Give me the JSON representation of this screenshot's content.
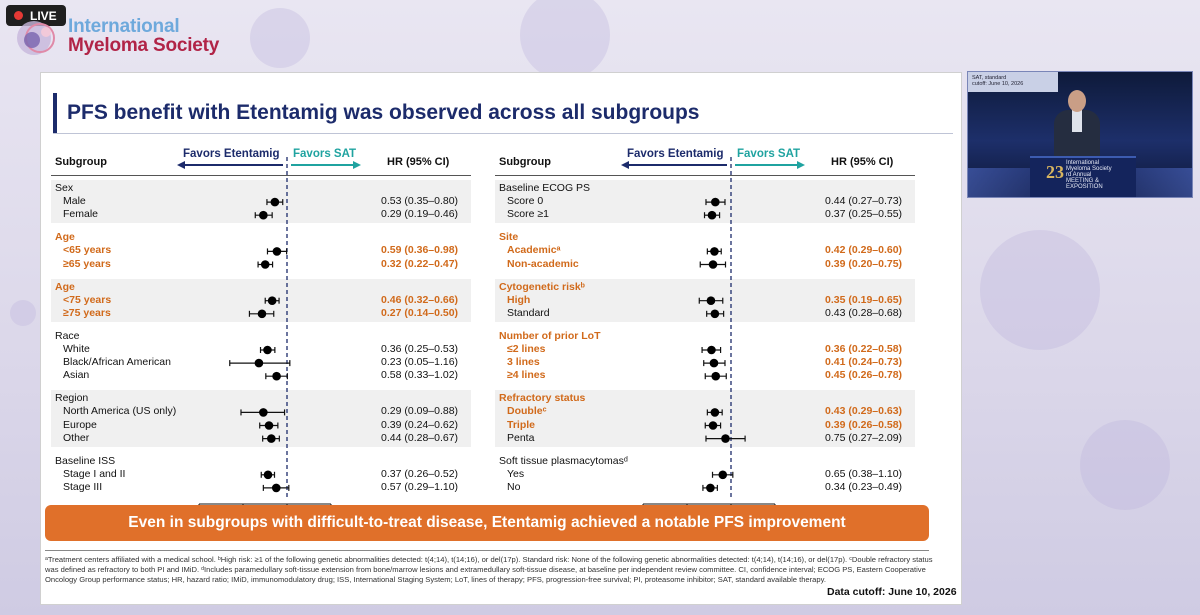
{
  "live_badge": "LIVE",
  "logo": {
    "line1": "International",
    "line2": "Myeloma Society"
  },
  "slide": {
    "title": "PFS benefit with Etentamig was observed across all subgroups",
    "headers": {
      "subgroup": "Subgroup",
      "favors_left": "Favors Etentamig",
      "favors_right": "Favors SAT",
      "hr": "HR (95% CI)"
    },
    "axis_ticks": [
      "0.01",
      "0.1",
      "1",
      "10"
    ],
    "left_groups": [
      {
        "label": "Sex",
        "highlight": false,
        "rows": [
          {
            "label": "Male",
            "hr": "0.53 (0.35–0.80)",
            "est": 0.53,
            "lo": 0.35,
            "hi": 0.8
          },
          {
            "label": "Female",
            "hr": "0.29 (0.19–0.46)",
            "est": 0.29,
            "lo": 0.19,
            "hi": 0.46
          }
        ]
      },
      {
        "label": "Age",
        "highlight": true,
        "rows": [
          {
            "label": "<65 years",
            "hr": "0.59 (0.36–0.98)",
            "est": 0.59,
            "lo": 0.36,
            "hi": 0.98
          },
          {
            "label": "≥65 years",
            "hr": "0.32 (0.22–0.47)",
            "est": 0.32,
            "lo": 0.22,
            "hi": 0.47
          }
        ]
      },
      {
        "label": "Age",
        "highlight": true,
        "rows": [
          {
            "label": "<75 years",
            "hr": "0.46 (0.32–0.66)",
            "est": 0.46,
            "lo": 0.32,
            "hi": 0.66
          },
          {
            "label": "≥75 years",
            "hr": "0.27 (0.14–0.50)",
            "est": 0.27,
            "lo": 0.14,
            "hi": 0.5
          }
        ]
      },
      {
        "label": "Race",
        "highlight": false,
        "rows": [
          {
            "label": "White",
            "hr": "0.36 (0.25–0.53)",
            "est": 0.36,
            "lo": 0.25,
            "hi": 0.53
          },
          {
            "label": "Black/African American",
            "hr": "0.23 (0.05–1.16)",
            "est": 0.23,
            "lo": 0.05,
            "hi": 1.16
          },
          {
            "label": "Asian",
            "hr": "0.58 (0.33–1.02)",
            "est": 0.58,
            "lo": 0.33,
            "hi": 1.02
          }
        ]
      },
      {
        "label": "Region",
        "highlight": false,
        "rows": [
          {
            "label": "North America (US only)",
            "hr": "0.29 (0.09–0.88)",
            "est": 0.29,
            "lo": 0.09,
            "hi": 0.88
          },
          {
            "label": "Europe",
            "hr": "0.39 (0.24–0.62)",
            "est": 0.39,
            "lo": 0.24,
            "hi": 0.62
          },
          {
            "label": "Other",
            "hr": "0.44 (0.28–0.67)",
            "est": 0.44,
            "lo": 0.28,
            "hi": 0.67
          }
        ]
      },
      {
        "label": "Baseline ISS",
        "highlight": false,
        "rows": [
          {
            "label": "Stage I and II",
            "hr": "0.37 (0.26–0.52)",
            "est": 0.37,
            "lo": 0.26,
            "hi": 0.52
          },
          {
            "label": "Stage III",
            "hr": "0.57 (0.29–1.10)",
            "est": 0.57,
            "lo": 0.29,
            "hi": 1.1
          }
        ]
      }
    ],
    "right_groups": [
      {
        "label": "Baseline ECOG PS",
        "highlight": false,
        "rows": [
          {
            "label": "Score 0",
            "hr": "0.44 (0.27–0.73)",
            "est": 0.44,
            "lo": 0.27,
            "hi": 0.73
          },
          {
            "label": "Score ≥1",
            "hr": "0.37 (0.25–0.55)",
            "est": 0.37,
            "lo": 0.25,
            "hi": 0.55
          }
        ]
      },
      {
        "label": "Site",
        "highlight": true,
        "rows": [
          {
            "label": "Academicᵃ",
            "hr": "0.42 (0.29–0.60)",
            "est": 0.42,
            "lo": 0.29,
            "hi": 0.6
          },
          {
            "label": "Non-academic",
            "hr": "0.39 (0.20–0.75)",
            "est": 0.39,
            "lo": 0.2,
            "hi": 0.75
          }
        ]
      },
      {
        "label": "Cytogenetic riskᵇ",
        "highlight": true,
        "rows": [
          {
            "label": "High",
            "hr": "0.35 (0.19–0.65)",
            "est": 0.35,
            "lo": 0.19,
            "hi": 0.65,
            "highlight": true
          },
          {
            "label": "Standard",
            "hr": "0.43 (0.28–0.68)",
            "est": 0.43,
            "lo": 0.28,
            "hi": 0.68,
            "highlight": false
          }
        ]
      },
      {
        "label": "Number of prior LoT",
        "highlight": true,
        "rows": [
          {
            "label": "≤2 lines",
            "hr": "0.36 (0.22–0.58)",
            "est": 0.36,
            "lo": 0.22,
            "hi": 0.58
          },
          {
            "label": "3 lines",
            "hr": "0.41 (0.24–0.73)",
            "est": 0.41,
            "lo": 0.24,
            "hi": 0.73
          },
          {
            "label": "≥4 lines",
            "hr": "0.45 (0.26–0.78)",
            "est": 0.45,
            "lo": 0.26,
            "hi": 0.78
          }
        ]
      },
      {
        "label": "Refractory status",
        "highlight": true,
        "rows": [
          {
            "label": "Doubleᶜ",
            "hr": "0.43 (0.29–0.63)",
            "est": 0.43,
            "lo": 0.29,
            "hi": 0.63,
            "highlight": true
          },
          {
            "label": "Triple",
            "hr": "0.39 (0.26–0.58)",
            "est": 0.39,
            "lo": 0.26,
            "hi": 0.58,
            "highlight": true
          },
          {
            "label": "Penta",
            "hr": "0.75 (0.27–2.09)",
            "est": 0.75,
            "lo": 0.27,
            "hi": 2.09,
            "highlight": false
          }
        ]
      },
      {
        "label": "Soft tissue plasmacytomasᵈ",
        "highlight": false,
        "rows": [
          {
            "label": "Yes",
            "hr": "0.65 (0.38–1.10)",
            "est": 0.65,
            "lo": 0.38,
            "hi": 1.1
          },
          {
            "label": "No",
            "hr": "0.34 (0.23–0.49)",
            "est": 0.34,
            "lo": 0.23,
            "hi": 0.49
          }
        ]
      }
    ],
    "banner": "Even in subgroups with difficult-to-treat disease, Etentamig achieved a notable PFS improvement",
    "footnote": "ᵃTreatment centers affiliated with a medical school. ᵇHigh risk: ≥1 of the following genetic abnormalities detected: t(4;14), t(14;16), or del(17p). Standard risk: None of the following genetic abnormalities detected: t(4;14), t(14;16), or del(17p). ᶜDouble refractory status was defined as refractory to both PI and IMiD. ᵈIncludes paramedullary soft-tissue extension from bone/marrow lesions and extramedullary soft-tissue disease, at baseline per independent review committee. CI, confidence interval; ECOG PS, Eastern Cooperative Oncology Group performance status; HR, hazard ratio; IMiD, immunomodulatory drug; ISS, International Staging System; LoT, lines of therapy; PFS, progression-free survival; PI, proteasome inhibitor; SAT, standard available therapy.",
    "data_cutoff": "Data cutoff: June 10, 2026"
  },
  "video": {
    "screen_text_line1": "SAT, standard",
    "screen_text_line2": "cutoff: June 10, 2026",
    "podium_number": "23",
    "podium_text_line1": "International",
    "podium_text_line2": "Myeloma Society",
    "podium_text_line3": "rd Annual",
    "podium_text_line4": "MEETING &",
    "podium_text_line5": "EXPOSITION"
  },
  "chart_data": [
    {
      "type": "forest",
      "xscale": "log",
      "xlim": [
        0.01,
        10
      ],
      "xticks": [
        0.01,
        0.1,
        1,
        10
      ],
      "reference_line": 1,
      "categories": [
        "Male",
        "Female",
        "<65 years",
        "≥65 years",
        "<75 years",
        "≥75 years",
        "White",
        "Black/African American",
        "Asian",
        "North America (US only)",
        "Europe",
        "Other",
        "Stage I and II",
        "Stage III"
      ],
      "values": [
        0.53,
        0.29,
        0.59,
        0.32,
        0.46,
        0.27,
        0.36,
        0.23,
        0.58,
        0.29,
        0.39,
        0.44,
        0.37,
        0.57
      ],
      "ci_low": [
        0.35,
        0.19,
        0.36,
        0.22,
        0.32,
        0.14,
        0.25,
        0.05,
        0.33,
        0.09,
        0.24,
        0.28,
        0.26,
        0.29
      ],
      "ci_high": [
        0.8,
        0.46,
        0.98,
        0.47,
        0.66,
        0.5,
        0.53,
        1.16,
        1.02,
        0.88,
        0.62,
        0.67,
        0.52,
        1.1
      ]
    },
    {
      "type": "forest",
      "xscale": "log",
      "xlim": [
        0.01,
        10
      ],
      "xticks": [
        0.01,
        0.1,
        1,
        10
      ],
      "reference_line": 1,
      "categories": [
        "Score 0",
        "Score ≥1",
        "Academic",
        "Non-academic",
        "High",
        "Standard",
        "≤2 lines",
        "3 lines",
        "≥4 lines",
        "Double",
        "Triple",
        "Penta",
        "Yes",
        "No"
      ],
      "values": [
        0.44,
        0.37,
        0.42,
        0.39,
        0.35,
        0.43,
        0.36,
        0.41,
        0.45,
        0.43,
        0.39,
        0.75,
        0.65,
        0.34
      ],
      "ci_low": [
        0.27,
        0.25,
        0.29,
        0.2,
        0.19,
        0.28,
        0.22,
        0.24,
        0.26,
        0.29,
        0.26,
        0.27,
        0.38,
        0.23
      ],
      "ci_high": [
        0.73,
        0.55,
        0.6,
        0.75,
        0.65,
        0.68,
        0.58,
        0.73,
        0.78,
        0.63,
        0.58,
        2.09,
        1.1,
        0.49
      ]
    }
  ],
  "colors": {
    "navy": "#1c2b6b",
    "teal": "#1fa3a0",
    "orange": "#d16a1b",
    "banner": "#e0702a"
  }
}
